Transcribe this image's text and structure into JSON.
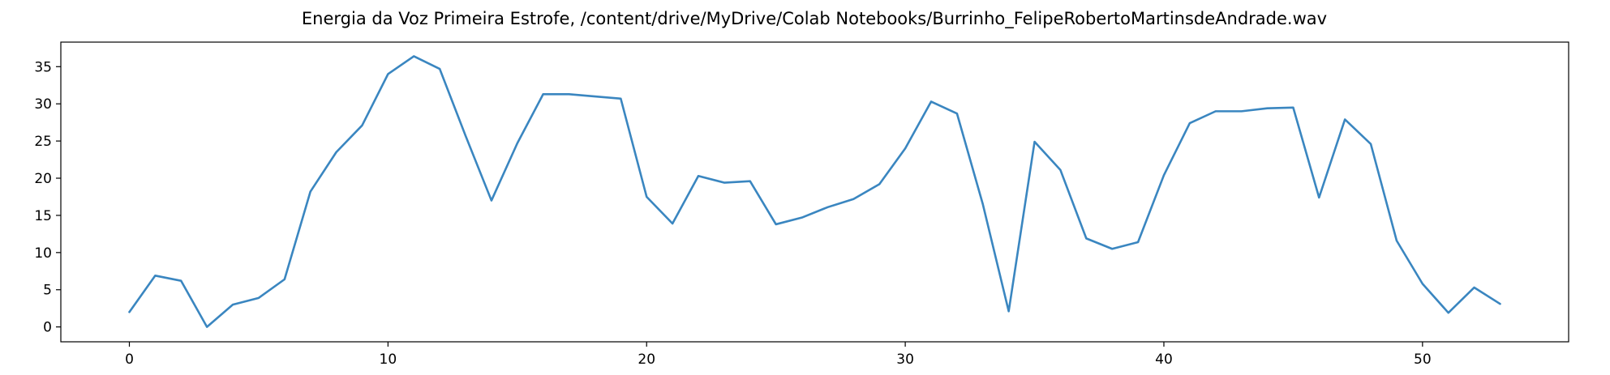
{
  "chart_data": {
    "type": "line",
    "title": "Energia da Voz Primeira Estrofe, /content/drive/MyDrive/Colab Notebooks/Burrinho_FelipeRobertoMartinsdeAndrade.wav",
    "xlabel": "",
    "ylabel": "",
    "xlim": [
      -2.65,
      55.65
    ],
    "ylim": [
      -2.0,
      38.3
    ],
    "xticks": [
      0,
      10,
      20,
      30,
      40,
      50
    ],
    "yticks": [
      0,
      5,
      10,
      15,
      20,
      25,
      30,
      35
    ],
    "grid": false,
    "legend": "none",
    "series": [
      {
        "color": "#3a86c0",
        "x": [
          0,
          1,
          2,
          3,
          4,
          5,
          6,
          7,
          8,
          9,
          10,
          11,
          12,
          13,
          14,
          15,
          16,
          17,
          18,
          19,
          20,
          21,
          22,
          23,
          24,
          25,
          26,
          27,
          28,
          29,
          30,
          31,
          32,
          33,
          34,
          35,
          36,
          37,
          38,
          39,
          40,
          41,
          42,
          43,
          44,
          45,
          46,
          47,
          48,
          49,
          50,
          51,
          52,
          53
        ],
        "values": [
          2.0,
          6.9,
          6.2,
          0.0,
          3.0,
          3.9,
          6.4,
          18.2,
          23.5,
          27.1,
          34.0,
          36.4,
          34.7,
          25.7,
          17.0,
          24.7,
          31.3,
          31.3,
          31.0,
          30.7,
          17.5,
          13.9,
          20.3,
          19.4,
          19.6,
          13.8,
          14.7,
          16.1,
          17.2,
          19.2,
          24.0,
          30.3,
          28.7,
          16.5,
          2.1,
          24.9,
          21.1,
          11.9,
          10.5,
          11.4,
          20.4,
          27.4,
          29.0,
          29.0,
          29.4,
          29.5,
          17.4,
          27.9,
          24.6,
          11.6,
          5.8,
          1.9,
          5.3,
          3.1
        ]
      }
    ]
  }
}
